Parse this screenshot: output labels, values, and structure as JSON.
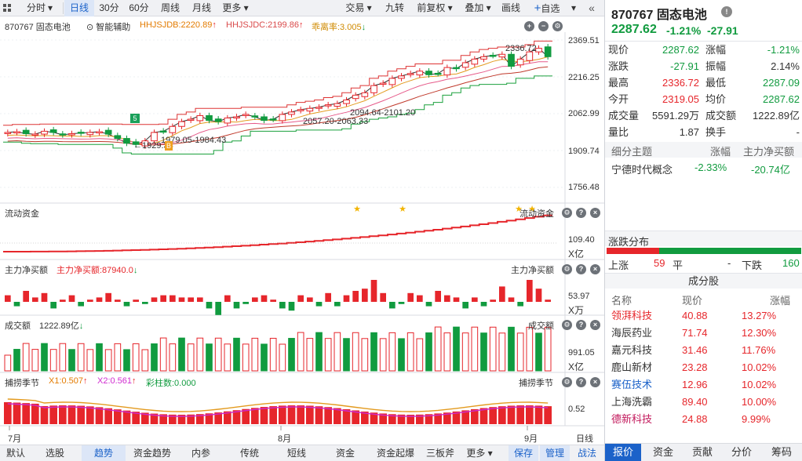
{
  "toolbar": {
    "left_buttons": [
      "分时",
      "日线",
      "30分",
      "60分",
      "周线",
      "月线",
      "更多"
    ],
    "active": "日线",
    "right_buttons": [
      "交易",
      "九转",
      "前复权",
      "叠加",
      "画线",
      "自选"
    ]
  },
  "main_chart": {
    "code_name": "870767 固态电池",
    "assist": "智能辅助",
    "hhjsjdb": "HHJSJDB:2220.89",
    "hhjsjdc": "HHJSJDC:2199.86",
    "ratio": "乖离率:3.005",
    "y_ticks": [
      "2369.51",
      "2216.25",
      "2062.99",
      "1909.74",
      "1756.48"
    ],
    "annotations": {
      "high": "2336.72",
      "low": "1929.38",
      "range1": "1979.05-1984.43",
      "range2": "2057.20-2063.33",
      "range3": "2094.64-2101.20"
    },
    "marker_5": "5",
    "marker_b": "B"
  },
  "panel_flow": {
    "title": "流动资金",
    "right_title": "流动资金",
    "value": "109.40",
    "unit": "X亿"
  },
  "panel_net": {
    "title": "主力净买额",
    "label": "主力净买额:87940.0",
    "right_title": "主力净买额",
    "value": "53.97",
    "unit": "X万"
  },
  "panel_vol": {
    "title": "成交额",
    "label": "1222.89亿",
    "right_title": "成交额",
    "value": "991.05",
    "unit": "X亿"
  },
  "panel_season": {
    "title": "捕捞季节",
    "x1": "X1:0.507",
    "x2": "X2:0.561",
    "bars": "彩柱数:0.000",
    "right_title": "捕捞季节",
    "value": "0.52"
  },
  "x_axis": {
    "labels": [
      "7月",
      "8月",
      "9月"
    ],
    "period": "日线"
  },
  "bottom_tabs": [
    "默认",
    "选股",
    "趋势",
    "资金趋势",
    "内参",
    "传统",
    "短线",
    "资金",
    "资金起爆",
    "三板斧",
    "更多"
  ],
  "bottom_active": "趋势",
  "bottom_right": [
    "保存",
    "管理",
    "战法"
  ],
  "quote": {
    "title": "870767 固态电池",
    "price": "2287.62",
    "change_pct": "-1.21%",
    "change": "-27.91",
    "rows": [
      [
        "现价",
        "2287.62",
        "涨幅",
        "-1.21%"
      ],
      [
        "涨跌",
        "-27.91",
        "振幅",
        "2.14%"
      ],
      [
        "最高",
        "2336.72",
        "最低",
        "2287.09"
      ],
      [
        "今开",
        "2319.05",
        "均价",
        "2287.62"
      ],
      [
        "成交量",
        "5591.29万",
        "成交额",
        "1222.89亿"
      ],
      [
        "量比",
        "1.87",
        "换手",
        "-"
      ]
    ],
    "theme_header": [
      "细分主题",
      "涨幅",
      "主力净买额"
    ],
    "theme_row": [
      "宁德时代概念",
      "-2.33%",
      "-20.74亿"
    ]
  },
  "distribution": {
    "title": "涨跌分布",
    "up_label": "上涨",
    "up": "59",
    "flat_label": "平",
    "flat": "-",
    "down_label": "下跌",
    "down": "160"
  },
  "components": {
    "title": "成分股",
    "headers": [
      "名称",
      "现价",
      "涨幅"
    ],
    "rows": [
      [
        "领湃科技",
        "40.88",
        "13.27%"
      ],
      [
        "海辰药业",
        "71.74",
        "12.30%"
      ],
      [
        "嘉元科技",
        "31.46",
        "11.76%"
      ],
      [
        "鹿山新材",
        "23.28",
        "10.02%"
      ],
      [
        "赛伍技术",
        "12.96",
        "10.02%"
      ],
      [
        "上海洗霸",
        "89.40",
        "10.00%"
      ],
      [
        "德新科技",
        "24.88",
        "9.99%"
      ]
    ]
  },
  "right_tabs": [
    "报价",
    "资金",
    "贡献",
    "分价",
    "筹码"
  ],
  "right_active": "报价",
  "colors": {
    "up": "#e6262b",
    "down": "#119b3f",
    "accent": "#1b62c9"
  },
  "chart_data": {
    "type": "candlestick",
    "y_range": [
      1756.48,
      2369.51
    ],
    "closes_approx": [
      1985,
      1988,
      1980,
      1978,
      1990,
      1985,
      1975,
      1980,
      1982,
      1985,
      1988,
      1978,
      1960,
      1940,
      1935,
      1950,
      1985,
      1990,
      2010,
      2030,
      2040,
      2055,
      2035,
      2030,
      2045,
      2050,
      2060,
      2050,
      2035,
      2040,
      2060,
      2070,
      2080,
      2085,
      2090,
      2100,
      2105,
      2120,
      2140,
      2150,
      2180,
      2190,
      2210,
      2220,
      2230,
      2240,
      2225,
      2230,
      2255,
      2250,
      2275,
      2290,
      2300,
      2305,
      2310,
      2260,
      2290,
      2320,
      2335,
      2300
    ]
  }
}
